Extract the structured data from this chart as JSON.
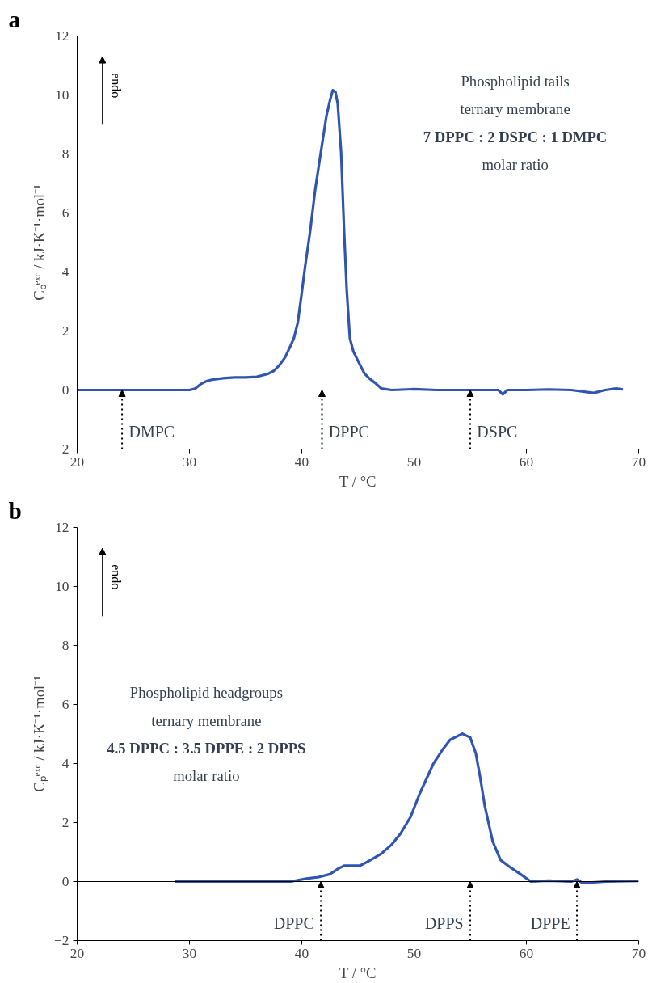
{
  "chart_data": [
    {
      "type": "line",
      "title": "a",
      "xlabel": "T / °C",
      "ylabel": "Cₚᵉˣᶜ / kJ·K⁻¹·mol⁻¹",
      "x": [
        20,
        22,
        24,
        26,
        28,
        30,
        30.5,
        31,
        31.5,
        32,
        33,
        34,
        35,
        36,
        37,
        37.5,
        38,
        38.5,
        39,
        39.3,
        39.65,
        40,
        40.3,
        40.74,
        41.2,
        41.7,
        42.2,
        42.5,
        42.76,
        43,
        43.2,
        43.5,
        43.77,
        44,
        44.28,
        44.6,
        45.2,
        45.6,
        46,
        46.5,
        47.1,
        48,
        50,
        52,
        54,
        56,
        57.5,
        57.9,
        58.3,
        60,
        62,
        64,
        66,
        67,
        68,
        68.6
      ],
      "series": [
        {
          "color": "#2f55b0",
          "values": [
            0,
            0,
            0,
            0,
            0,
            0,
            0.05,
            0.2,
            0.3,
            0.35,
            0.4,
            0.43,
            0.43,
            0.45,
            0.55,
            0.65,
            0.84,
            1.1,
            1.5,
            1.76,
            2.3,
            3.3,
            4.2,
            5.37,
            6.8,
            8.07,
            9.3,
            9.8,
            10.16,
            10.1,
            9.7,
            8.07,
            5.37,
            3.4,
            1.76,
            1.3,
            0.84,
            0.55,
            0.4,
            0.25,
            0.05,
            0,
            0.03,
            0,
            0,
            0,
            0,
            -0.15,
            0,
            0,
            0.02,
            0,
            -0.1,
            0,
            0.05,
            0.02
          ]
        }
      ],
      "xlim": [
        20,
        70
      ],
      "xticks": [
        20,
        30,
        40,
        50,
        60,
        70
      ],
      "ylim": [
        -2,
        12
      ],
      "yticks": [
        -2,
        0,
        2,
        4,
        6,
        8,
        10,
        12
      ],
      "grid": false,
      "line_style": "solid",
      "marker": "none",
      "ref_lines": [
        {
          "axis": "y",
          "value": 0,
          "color": "#000000"
        }
      ],
      "annotations": [
        "endo",
        "Phospholipid tails",
        "ternary membrane",
        "7 DPPC : 2 DSPC : 1 DMPC",
        "molar ratio",
        {
          "text": "DMPC",
          "x": 24,
          "y": 0
        },
        {
          "text": "DPPC",
          "x": 41.8,
          "y": 0
        },
        {
          "text": "DSPC",
          "x": 55,
          "y": 0
        }
      ]
    },
    {
      "type": "line",
      "title": "b",
      "xlabel": "T / °C",
      "ylabel": "Cₚᵉˣᶜ / kJ·K⁻¹·mol⁻¹",
      "x": [
        28.7,
        30,
        32,
        34,
        36,
        38,
        39,
        40.4,
        41.5,
        42.5,
        43.3,
        43.8,
        45.2,
        46,
        47.1,
        48,
        48.8,
        49.7,
        50.5,
        51.7,
        52.5,
        53.2,
        54.3,
        55,
        55.5,
        55.9,
        56.3,
        57,
        57.7,
        58.5,
        59.4,
        60.4,
        62,
        64,
        64.5,
        65,
        67,
        70
      ],
      "series": [
        {
          "color": "#2f55b0",
          "values": [
            0,
            0,
            0,
            0,
            0,
            0,
            0,
            0.1,
            0.15,
            0.25,
            0.45,
            0.54,
            0.54,
            0.7,
            0.95,
            1.25,
            1.63,
            2.2,
            2.98,
            3.98,
            4.45,
            4.8,
            5.01,
            4.88,
            4.34,
            3.5,
            2.55,
            1.36,
            0.73,
            0.5,
            0.27,
            0,
            0.03,
            0,
            0.07,
            -0.05,
            0,
            0.02
          ]
        }
      ],
      "xlim": [
        20,
        70
      ],
      "xticks": [
        20,
        30,
        40,
        50,
        60,
        70
      ],
      "ylim": [
        -2,
        12
      ],
      "yticks": [
        -2,
        0,
        2,
        4,
        6,
        8,
        10,
        12
      ],
      "grid": false,
      "line_style": "solid",
      "marker": "none",
      "ref_lines": [
        {
          "axis": "y",
          "value": 0,
          "color": "#000000"
        }
      ],
      "annotations": [
        "endo",
        "Phospholipid headgroups",
        "ternary membrane",
        "4.5 DPPC : 3.5 DPPE : 2 DPPS",
        "molar ratio",
        {
          "text": "DPPC",
          "x": 41.7,
          "y": 0
        },
        {
          "text": "DPPS",
          "x": 55,
          "y": 0
        },
        {
          "text": "DPPE",
          "x": 64.5,
          "y": 0
        }
      ]
    }
  ]
}
